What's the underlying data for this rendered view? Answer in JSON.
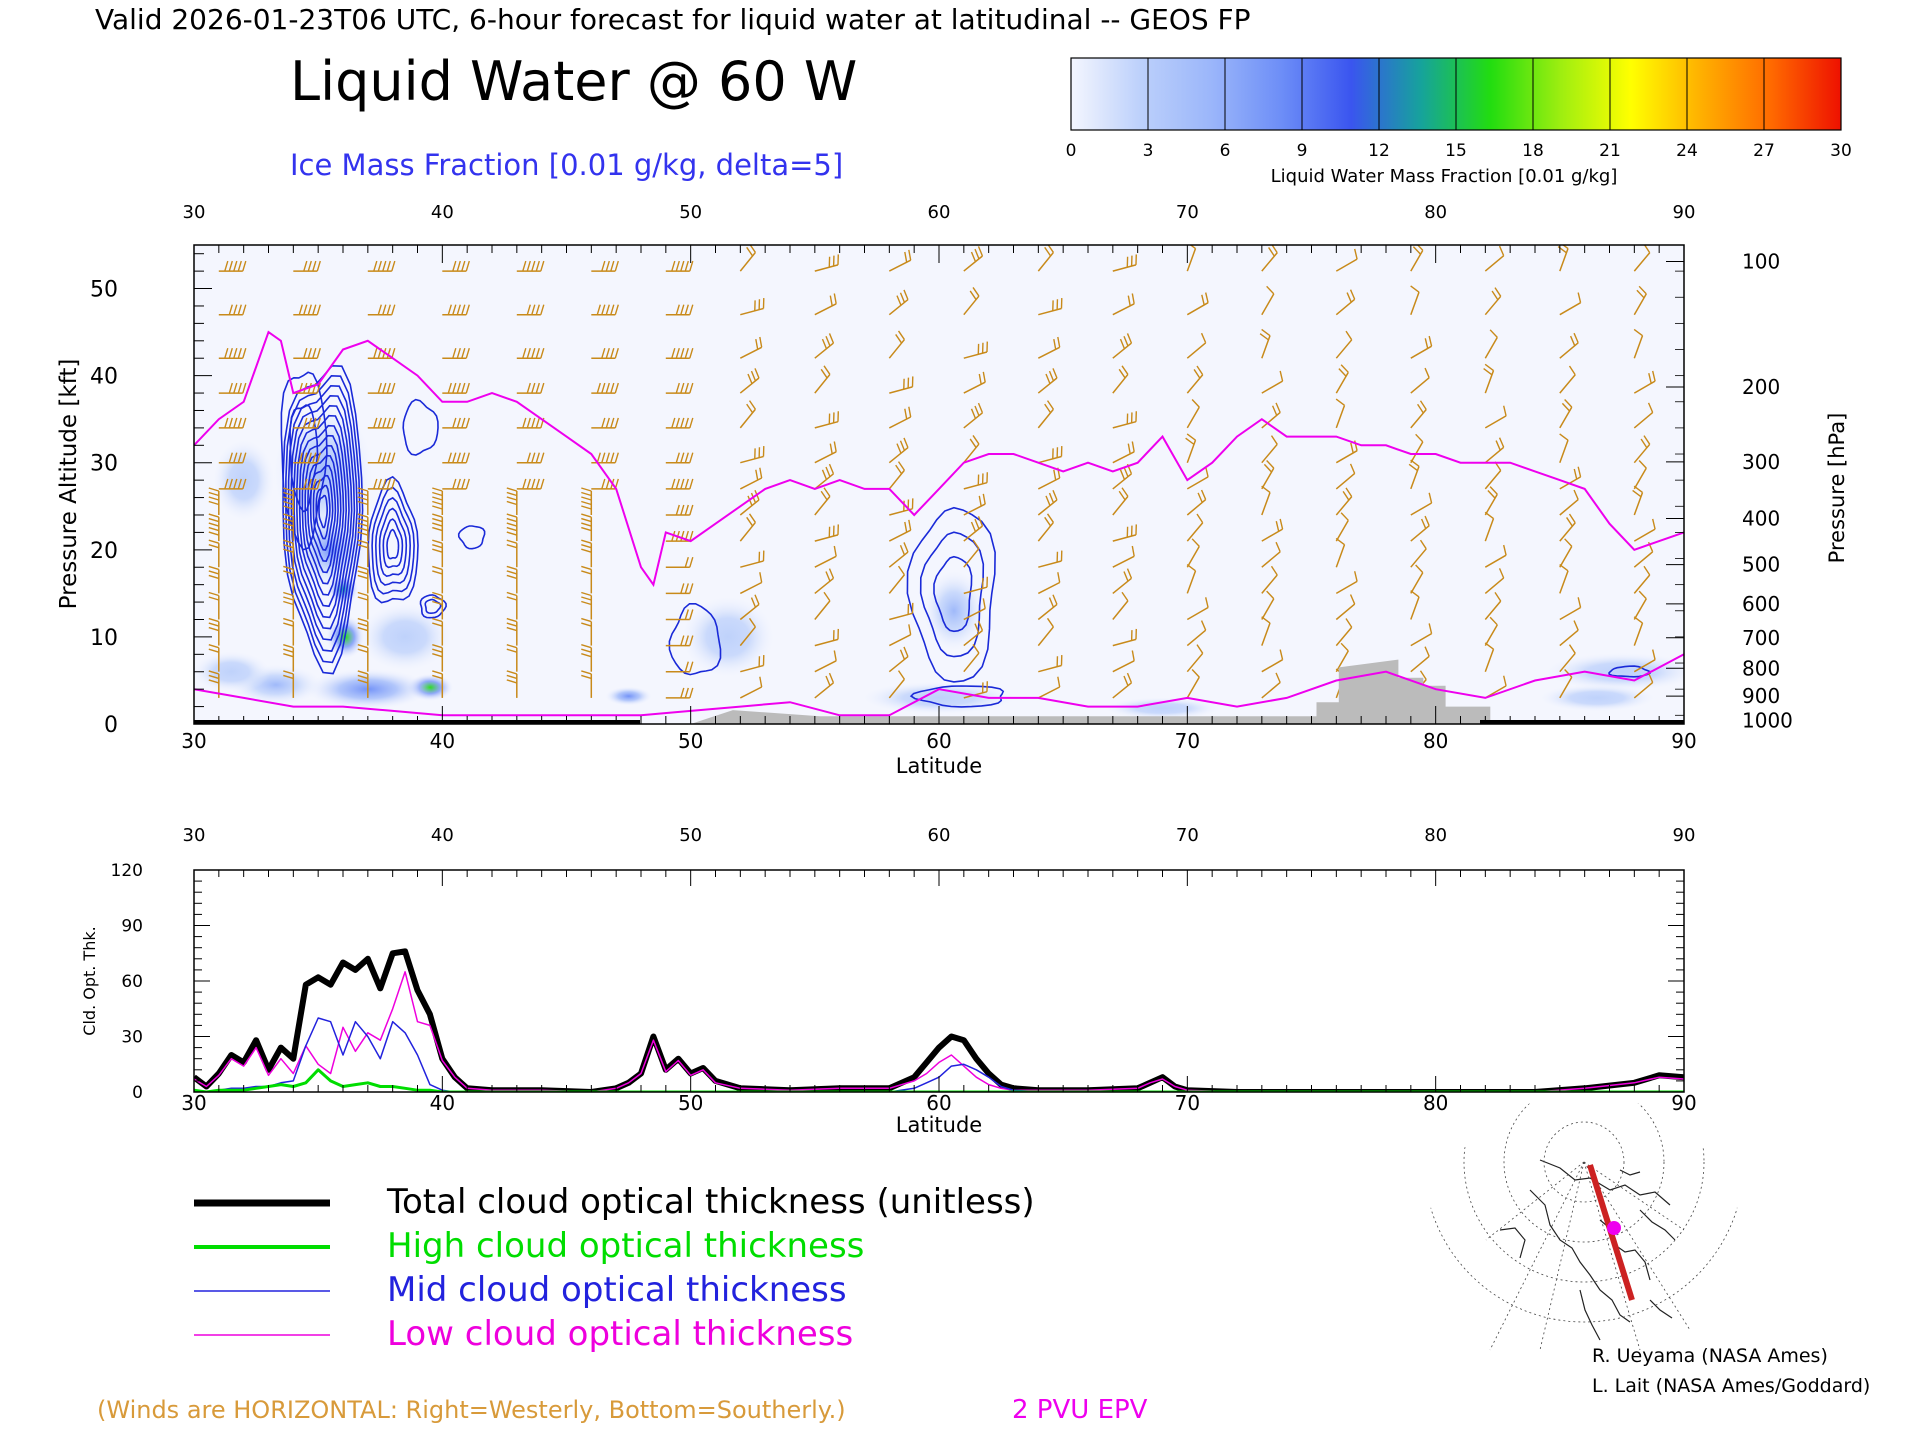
{
  "header": {
    "valid_line": "Valid 2026-01-23T06 UTC, 6-hour forecast for liquid water at latitudinal -- GEOS FP",
    "title": "Liquid Water @ 60 W",
    "subtitle": "Ice Mass Fraction [0.01 g/kg, delta=5]"
  },
  "colorbar": {
    "label": "Liquid Water Mass Fraction [0.01 g/kg]",
    "ticks": [
      "0",
      "3",
      "6",
      "9",
      "12",
      "15",
      "18",
      "21",
      "24",
      "27",
      "30"
    ],
    "colors": [
      "#f4f6fe",
      "#bcd0fb",
      "#9bb6fa",
      "#6d8ef7",
      "#3a55ef",
      "#16a39b",
      "#22dd10",
      "#9eee10",
      "#ffff00",
      "#ffb000",
      "#ff6a00",
      "#ee1100"
    ]
  },
  "chart_data": [
    {
      "type": "heatmap",
      "title": "Liquid Water @ 60 W",
      "xlabel": "Latitude",
      "ylabel": "Pressure Altitude [kft]",
      "y2label": "Pressure [hPa]",
      "xlim": [
        30,
        90
      ],
      "ylim": [
        0,
        55
      ],
      "x_ticks": [
        "30",
        "40",
        "50",
        "60",
        "70",
        "80",
        "90"
      ],
      "y_ticks": [
        "0",
        "10",
        "20",
        "30",
        "40",
        "50"
      ],
      "pressure_ticks": [
        {
          "label": "100",
          "kft": 53.1
        },
        {
          "label": "200",
          "kft": 38.7
        },
        {
          "label": "300",
          "kft": 30.1
        },
        {
          "label": "400",
          "kft": 23.6
        },
        {
          "label": "500",
          "kft": 18.3
        },
        {
          "label": "600",
          "kft": 13.8
        },
        {
          "label": "700",
          "kft": 9.9
        },
        {
          "label": "800",
          "kft": 6.4
        },
        {
          "label": "900",
          "kft": 3.2
        },
        {
          "label": "1000",
          "kft": 0.4
        }
      ],
      "liquid_water_blobs": [
        {
          "lat": 35.2,
          "kft": 29,
          "sx": 1.3,
          "sy": 5,
          "v": 6
        },
        {
          "lat": 36.1,
          "kft": 10,
          "sx": 0.5,
          "sy": 1.6,
          "v": 16
        },
        {
          "lat": 36.0,
          "kft": 15.5,
          "sx": 0.4,
          "sy": 1.2,
          "v": 13
        },
        {
          "lat": 35.5,
          "kft": 20,
          "sx": 1.0,
          "sy": 3,
          "v": 7
        },
        {
          "lat": 39.5,
          "kft": 4.2,
          "sx": 0.6,
          "sy": 1.0,
          "v": 15
        },
        {
          "lat": 37.0,
          "kft": 4.0,
          "sx": 1.6,
          "sy": 1.5,
          "v": 8
        },
        {
          "lat": 33.3,
          "kft": 4.5,
          "sx": 1.2,
          "sy": 1.5,
          "v": 5
        },
        {
          "lat": 32.0,
          "kft": 28,
          "sx": 0.8,
          "sy": 3,
          "v": 3
        },
        {
          "lat": 38.5,
          "kft": 10,
          "sx": 1.2,
          "sy": 2.5,
          "v": 4
        },
        {
          "lat": 31.5,
          "kft": 6,
          "sx": 1.0,
          "sy": 1.5,
          "v": 3
        },
        {
          "lat": 47.5,
          "kft": 3.2,
          "sx": 0.6,
          "sy": 0.7,
          "v": 8
        },
        {
          "lat": 51.5,
          "kft": 10,
          "sx": 1.2,
          "sy": 3,
          "v": 3
        },
        {
          "lat": 60.6,
          "kft": 13,
          "sx": 0.8,
          "sy": 3,
          "v": 6
        },
        {
          "lat": 60.0,
          "kft": 3,
          "sx": 2,
          "sy": 1.2,
          "v": 3
        },
        {
          "lat": 69.0,
          "kft": 1.8,
          "sx": 1.5,
          "sy": 0.8,
          "v": 3
        },
        {
          "lat": 87.5,
          "kft": 6,
          "sx": 2,
          "sy": 1.4,
          "v": 3
        },
        {
          "lat": 86.5,
          "kft": 3,
          "sx": 1.5,
          "sy": 1,
          "v": 3
        }
      ],
      "ice_contours": [
        {
          "lat": 35.2,
          "kft": 24.5,
          "rx": 1.6,
          "ry": 17,
          "levels": 14
        },
        {
          "lat": 38.0,
          "kft": 20.5,
          "rx": 1.0,
          "ry": 7,
          "levels": 6
        },
        {
          "lat": 34.4,
          "kft": 31,
          "rx": 0.9,
          "ry": 10,
          "levels": 2
        },
        {
          "lat": 39.6,
          "kft": 13.5,
          "rx": 0.5,
          "ry": 1.3,
          "levels": 2
        },
        {
          "lat": 41.2,
          "kft": 21.5,
          "rx": 0.5,
          "ry": 1.3,
          "levels": 1
        },
        {
          "lat": 39.1,
          "kft": 34,
          "rx": 0.7,
          "ry": 3,
          "levels": 1
        },
        {
          "lat": 60.6,
          "kft": 15,
          "rx": 1.7,
          "ry": 10,
          "levels": 3
        },
        {
          "lat": 50.2,
          "kft": 9.5,
          "rx": 1.0,
          "ry": 4,
          "levels": 1
        },
        {
          "lat": 60.9,
          "kft": 3.2,
          "rx": 1.8,
          "ry": 1.2,
          "levels": 1
        },
        {
          "lat": 87.8,
          "kft": 6,
          "rx": 0.8,
          "ry": 0.6,
          "levels": 1
        }
      ],
      "pv_2pvu_line": {
        "lat": [
          30,
          31,
          32,
          33,
          33.5,
          34,
          35,
          36,
          37,
          38,
          39,
          40,
          41,
          42,
          43,
          44,
          45,
          46,
          47,
          48,
          48.5,
          49,
          50,
          51,
          52,
          53,
          54,
          55,
          56,
          57,
          58,
          59,
          60,
          61,
          62,
          63,
          64,
          65,
          66,
          67,
          68,
          69,
          70,
          71,
          72,
          73,
          74,
          75,
          76,
          77,
          78,
          79,
          80,
          81,
          82,
          83,
          84,
          85,
          86,
          87,
          88,
          89,
          90
        ],
        "kft": [
          32,
          35,
          37,
          45,
          44,
          38,
          39,
          43,
          44,
          42,
          40,
          37,
          37,
          38,
          37,
          35,
          33,
          31,
          27,
          18,
          16,
          22,
          21,
          23,
          25,
          27,
          28,
          27,
          28,
          27,
          27,
          24,
          27,
          30,
          31,
          31,
          30,
          29,
          30,
          29,
          30,
          33,
          28,
          30,
          33,
          35,
          33,
          33,
          33,
          32,
          32,
          31,
          31,
          30,
          30,
          30,
          29,
          28,
          27,
          23,
          20,
          21,
          22
        ]
      },
      "pv_low_line": {
        "lat": [
          30,
          32,
          34,
          36,
          38,
          40,
          42,
          44,
          46,
          48,
          50,
          52,
          54,
          56,
          58,
          60,
          62,
          64,
          66,
          68,
          70,
          72,
          74,
          76,
          78,
          80,
          82,
          84,
          86,
          88,
          90
        ],
        "kft": [
          4,
          3,
          2,
          2,
          1.5,
          1,
          1,
          1,
          1,
          1,
          1.5,
          2,
          2.5,
          1,
          1,
          4,
          3,
          3,
          2,
          2,
          3,
          2,
          3,
          5,
          6,
          4,
          3,
          5,
          6,
          5,
          8
        ]
      },
      "topography": {
        "lat": [
          47.2,
          50,
          50,
          51.7,
          51.7,
          55.2,
          55.2,
          75.2,
          75.2,
          76.1,
          76.1,
          78.5,
          78.5,
          79.5,
          79.5,
          80.4,
          80.4,
          82.2,
          82.2,
          85
        ],
        "kft": [
          0,
          0,
          0,
          1.6,
          1.6,
          0.9,
          0.9,
          0.9,
          2.5,
          2.5,
          6.5,
          7.4,
          5.3,
          5.3,
          4.4,
          4.4,
          2.0,
          2.0,
          0,
          0
        ]
      }
    },
    {
      "type": "line",
      "xlabel": "Latitude",
      "ylabel": "Cld. Opt. Thk.",
      "xlim": [
        30,
        90
      ],
      "ylim": [
        0,
        120
      ],
      "x_ticks": [
        "30",
        "40",
        "50",
        "60",
        "70",
        "80",
        "90"
      ],
      "y_ticks": [
        "0",
        "30",
        "60",
        "90",
        "120"
      ],
      "x": [
        30,
        30.5,
        31,
        31.5,
        32,
        32.5,
        33,
        33.5,
        34,
        34.5,
        35,
        35.5,
        36,
        36.5,
        37,
        37.5,
        38,
        38.5,
        39,
        39.5,
        40,
        40.5,
        41,
        42,
        44,
        46,
        47,
        47.5,
        48,
        48.5,
        49,
        49.5,
        50,
        50.5,
        51,
        52,
        54,
        56,
        58,
        59,
        59.5,
        60,
        60.5,
        61,
        61.5,
        62,
        62.5,
        63,
        64,
        66,
        68,
        68.5,
        69,
        69.5,
        70,
        72,
        76,
        80,
        84,
        86,
        88,
        89,
        90
      ],
      "series": [
        {
          "name": "Total cloud optical thickness (unitless)",
          "color": "#000000",
          "width": 6,
          "values": [
            8,
            3,
            10,
            20,
            16,
            28,
            12,
            24,
            18,
            58,
            62,
            58,
            70,
            66,
            72,
            56,
            75,
            76,
            55,
            42,
            18,
            8,
            2,
            1,
            1,
            0,
            2,
            5,
            10,
            30,
            12,
            18,
            10,
            13,
            6,
            2,
            1,
            2,
            2,
            8,
            16,
            24,
            30,
            28,
            18,
            10,
            4,
            2,
            1,
            1,
            2,
            5,
            8,
            3,
            1,
            0,
            0,
            0,
            0,
            2,
            5,
            9,
            8
          ]
        },
        {
          "name": "High cloud optical thickness",
          "color": "#00dd00",
          "width": 3,
          "values": [
            1,
            0,
            1,
            1,
            1,
            2,
            3,
            4,
            3,
            5,
            12,
            6,
            3,
            4,
            5,
            3,
            3,
            2,
            1,
            1,
            0,
            0,
            0,
            0,
            0,
            0,
            0,
            0,
            0,
            0,
            0,
            0,
            0,
            0,
            0,
            0,
            0,
            0,
            0,
            0,
            0,
            0,
            0,
            0,
            0,
            0,
            0,
            0,
            0,
            0,
            0,
            0,
            0,
            0,
            0,
            0,
            0,
            0,
            0,
            0,
            0,
            0,
            0
          ]
        },
        {
          "name": "Mid cloud optical thickness",
          "color": "#2222dd",
          "width": 1.5,
          "values": [
            1,
            0,
            1,
            2,
            2,
            3,
            3,
            5,
            6,
            25,
            40,
            38,
            20,
            38,
            30,
            18,
            38,
            32,
            20,
            4,
            1,
            0,
            0,
            0,
            0,
            0,
            0,
            0,
            0,
            0,
            0,
            0,
            0,
            0,
            0,
            0,
            0,
            0,
            0,
            2,
            5,
            8,
            14,
            15,
            12,
            8,
            3,
            1,
            0,
            0,
            0,
            0,
            0,
            0,
            0,
            0,
            0,
            0,
            0,
            0,
            0,
            0,
            0
          ]
        },
        {
          "name": "Low cloud optical thickness",
          "color": "#ee00dd",
          "width": 1.5,
          "values": [
            7,
            3,
            9,
            18,
            14,
            24,
            9,
            18,
            10,
            25,
            15,
            10,
            35,
            22,
            32,
            28,
            45,
            65,
            38,
            36,
            17,
            8,
            2,
            1,
            1,
            0,
            2,
            5,
            10,
            28,
            11,
            17,
            9,
            12,
            5,
            2,
            1,
            2,
            2,
            6,
            10,
            16,
            20,
            14,
            8,
            4,
            2,
            1,
            1,
            1,
            2,
            5,
            7,
            3,
            1,
            0,
            0,
            0,
            0,
            2,
            5,
            8,
            7
          ]
        }
      ]
    }
  ],
  "legend": [
    {
      "label": "Total cloud optical thickness (unitless)",
      "color": "#000000",
      "text_color": "#000000"
    },
    {
      "label": "High cloud optical thickness",
      "color": "#00dd00",
      "text_color": "#00dd00"
    },
    {
      "label": "Mid cloud optical thickness",
      "color": "#2222dd",
      "text_color": "#2222dd"
    },
    {
      "label": "Low cloud optical thickness",
      "color": "#ee00dd",
      "text_color": "#ee00dd"
    }
  ],
  "footer": {
    "winds_note": "(Winds are HORIZONTAL: Right=Westerly, Bottom=Southerly.)",
    "pvu_label": "2 PVU EPV",
    "credit_1": "R. Ueyama (NASA Ames)",
    "credit_2": "L. Lait (NASA Ames/Goddard)"
  },
  "colors": {
    "wind_barbs": "#c88a1a",
    "pv_line": "#ee00ee",
    "ice_contour": "#1a2ad8",
    "topography": "#bbbbbb"
  }
}
